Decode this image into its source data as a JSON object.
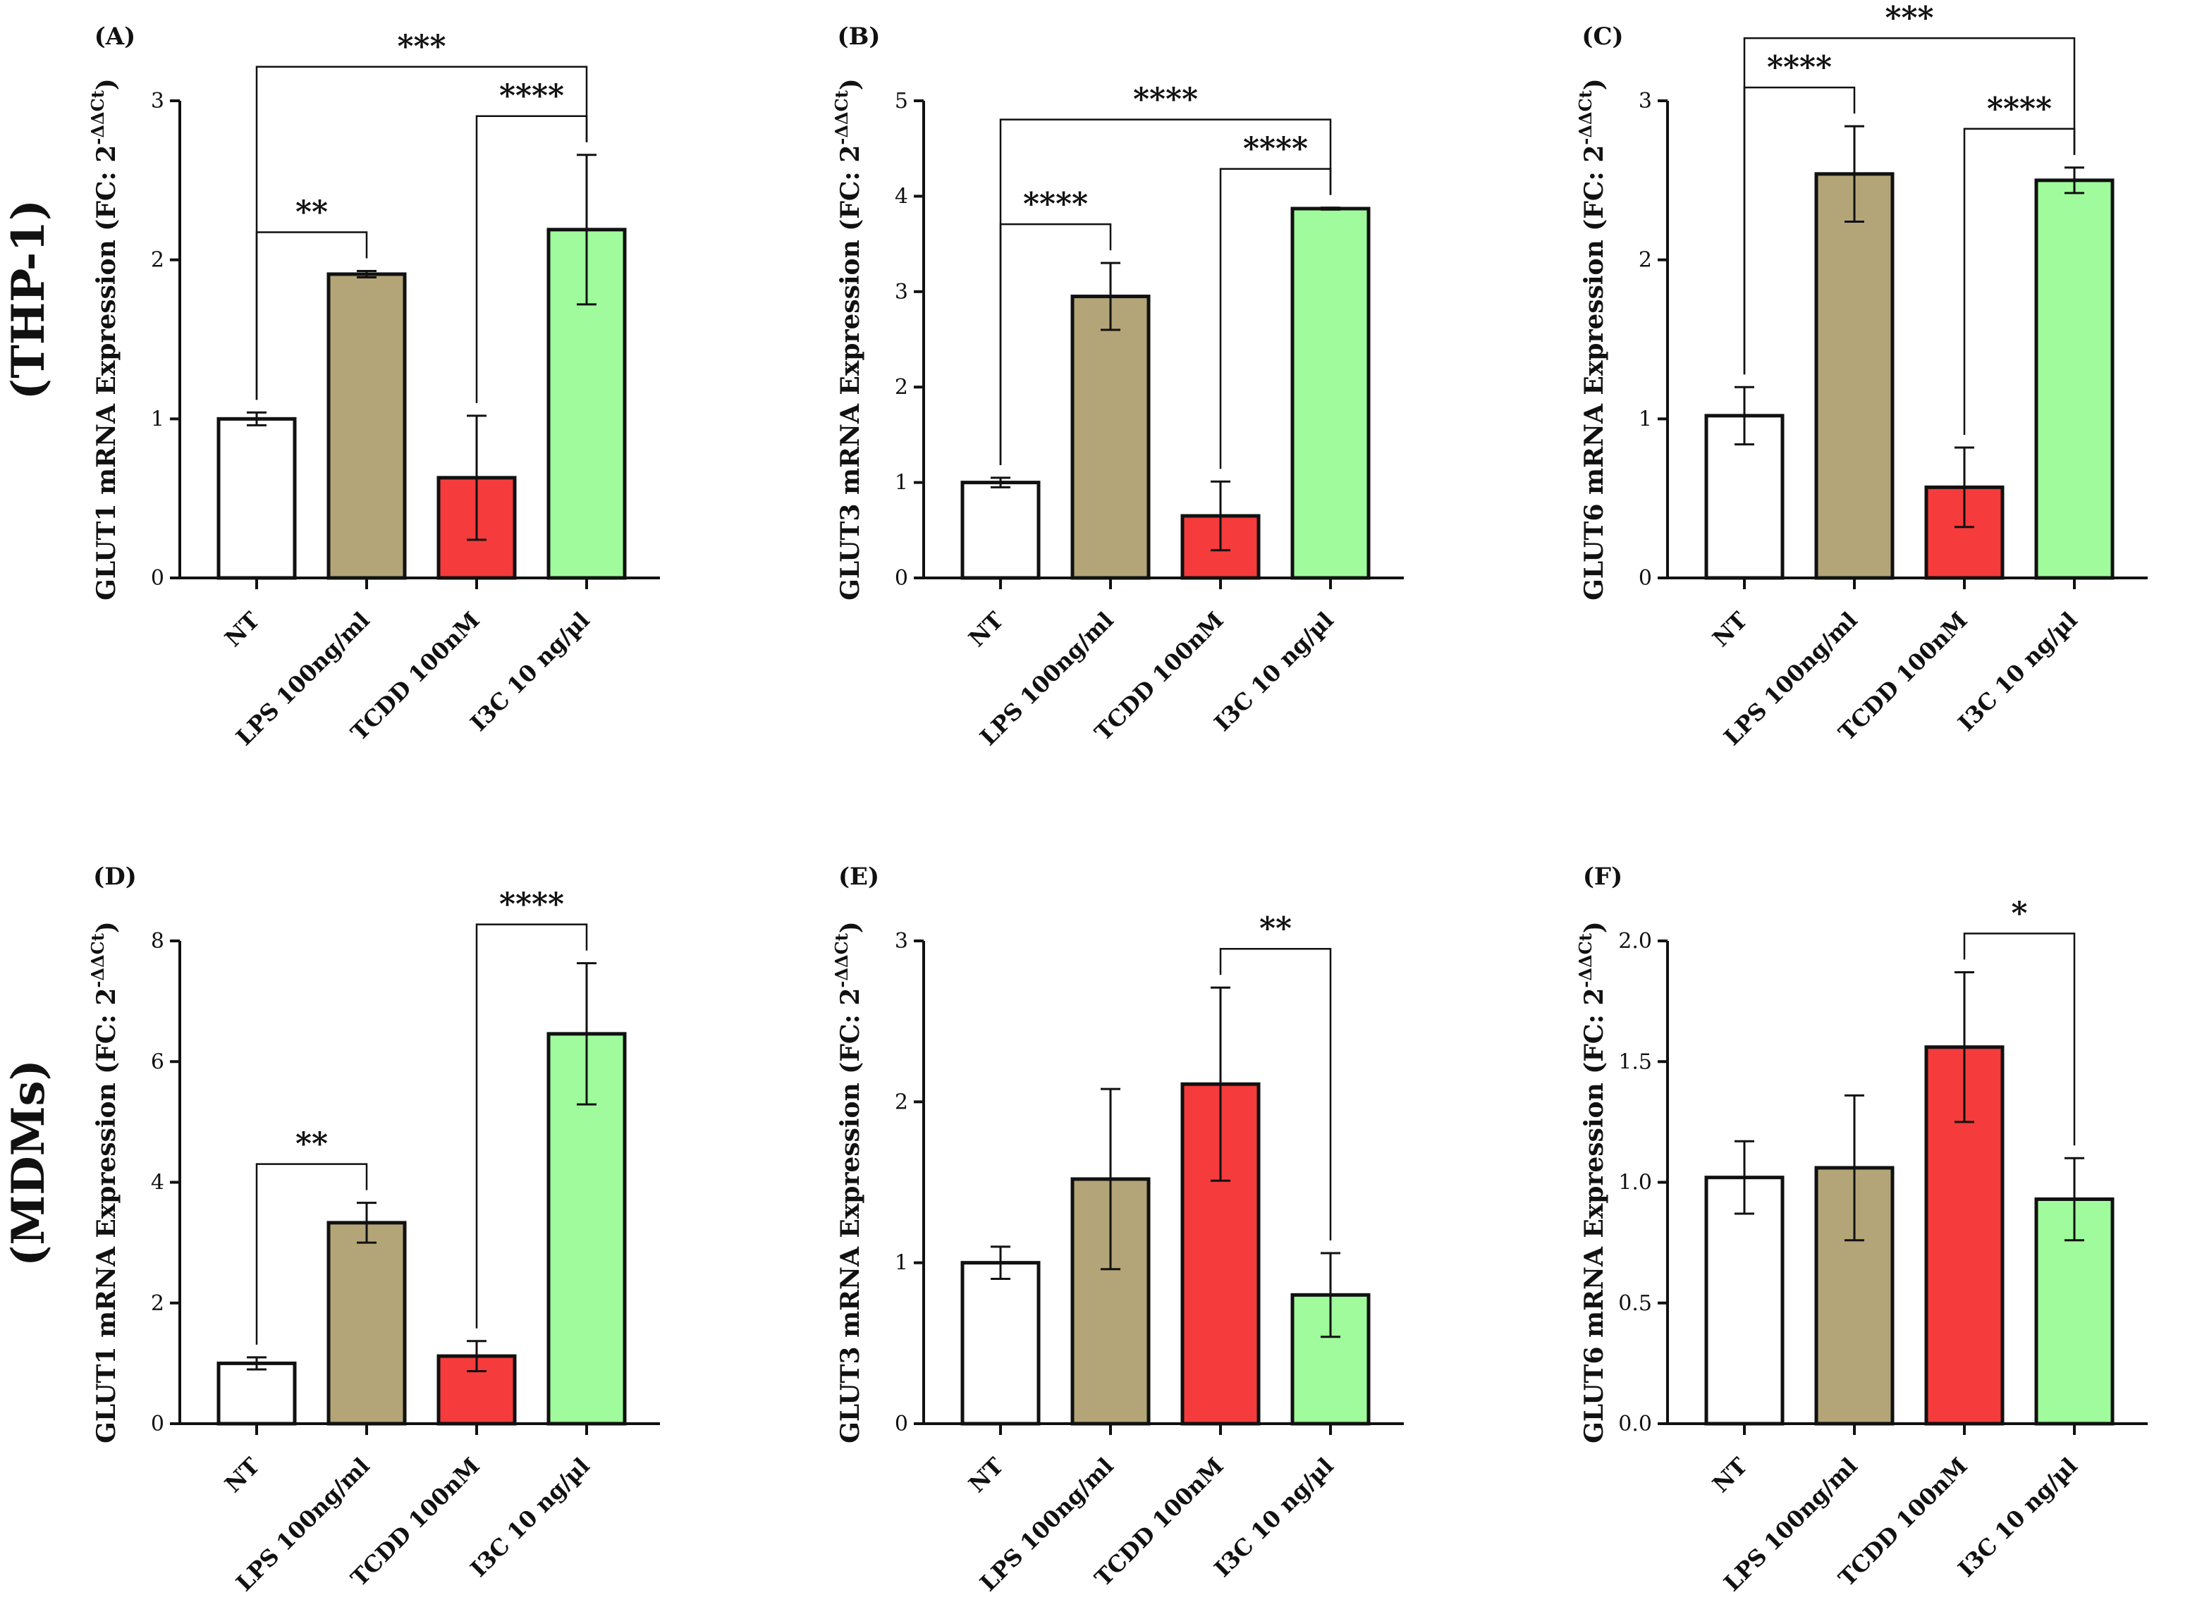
{
  "colors": {
    "NT": "#ffffff",
    "LPS": "#b3a577",
    "TCDD": "#f53b3b",
    "I3C": "#a0fb9c"
  },
  "row_labels": [
    "(THP-1)",
    "(MDMs)"
  ],
  "chart_data": [
    {
      "type": "bar",
      "panel": "(A)",
      "row": 0,
      "col": 0,
      "ylabel_main": "GLUT1 mRNA Expression (FC: 2",
      "ylabel_sup": "-ΔΔCt",
      "ylabel_end": ")",
      "categories": [
        "NT",
        "LPS 100ng/ml",
        "TCDD 100nM",
        "I3C 10 ng/µl"
      ],
      "values": [
        1.0,
        1.91,
        0.63,
        2.19
      ],
      "errors": [
        0.04,
        0.02,
        0.39,
        0.47
      ],
      "ylim": [
        0,
        3
      ],
      "yticks": [
        "0",
        "1",
        "2",
        "3"
      ],
      "significance": [
        {
          "from": 0,
          "to": 1,
          "label": "**",
          "level": 1
        },
        {
          "from": 2,
          "to": 3,
          "label": "****",
          "level": 1
        },
        {
          "from": 0,
          "to": 3,
          "label": "***",
          "level": 2
        }
      ]
    },
    {
      "type": "bar",
      "panel": "(B)",
      "row": 0,
      "col": 1,
      "ylabel_main": "GLUT3 mRNA Expression (FC: 2",
      "ylabel_sup": "-ΔΔCt",
      "ylabel_end": ")",
      "categories": [
        "NT",
        "LPS 100ng/ml",
        "TCDD 100nM",
        "I3C 10 ng/µl"
      ],
      "values": [
        1.0,
        2.95,
        0.65,
        3.87
      ],
      "errors": [
        0.05,
        0.35,
        0.36,
        0.01
      ],
      "ylim": [
        0,
        5
      ],
      "yticks": [
        "0",
        "1",
        "2",
        "3",
        "4",
        "5"
      ],
      "significance": [
        {
          "from": 0,
          "to": 1,
          "label": "****",
          "level": 1
        },
        {
          "from": 2,
          "to": 3,
          "label": "****",
          "level": 1
        },
        {
          "from": 0,
          "to": 3,
          "label": "****",
          "level": 2
        }
      ]
    },
    {
      "type": "bar",
      "panel": "(C)",
      "row": 0,
      "col": 2,
      "ylabel_main": "GLUT6 mRNA Expression (FC: 2",
      "ylabel_sup": "-ΔΔCt",
      "ylabel_end": ")",
      "categories": [
        "NT",
        "LPS 100ng/ml",
        "TCDD 100nM",
        "I3C 10 ng/µl"
      ],
      "values": [
        1.02,
        2.54,
        0.57,
        2.5
      ],
      "errors": [
        0.18,
        0.3,
        0.25,
        0.08
      ],
      "ylim": [
        0,
        3
      ],
      "yticks": [
        "0",
        "1",
        "2",
        "3"
      ],
      "significance": [
        {
          "from": 0,
          "to": 1,
          "label": "****",
          "level": 1
        },
        {
          "from": 2,
          "to": 3,
          "label": "****",
          "level": 1
        },
        {
          "from": 0,
          "to": 3,
          "label": "***",
          "level": 2
        }
      ]
    },
    {
      "type": "bar",
      "panel": "(D)",
      "row": 1,
      "col": 0,
      "ylabel_main": "GLUT1 mRNA Expression (FC: 2",
      "ylabel_sup": "-ΔΔCt",
      "ylabel_end": ")",
      "categories": [
        "NT",
        "LPS 100ng/ml",
        "TCDD 100nM",
        "I3C 10 ng/µl"
      ],
      "values": [
        1.0,
        3.33,
        1.12,
        6.46
      ],
      "errors": [
        0.1,
        0.33,
        0.25,
        1.17
      ],
      "ylim": [
        0,
        8
      ],
      "yticks": [
        "0",
        "2",
        "4",
        "6",
        "8"
      ],
      "significance": [
        {
          "from": 0,
          "to": 1,
          "label": "**",
          "level": 1
        },
        {
          "from": 2,
          "to": 3,
          "label": "****",
          "level": 1
        }
      ]
    },
    {
      "type": "bar",
      "panel": "(E)",
      "row": 1,
      "col": 1,
      "ylabel_main": "GLUT3 mRNA Expression (FC: 2",
      "ylabel_sup": "-ΔΔCt",
      "ylabel_end": ")",
      "categories": [
        "NT",
        "LPS 100ng/ml",
        "TCDD 100nM",
        "I3C 10 ng/µl"
      ],
      "values": [
        1.0,
        1.52,
        2.11,
        0.8
      ],
      "errors": [
        0.1,
        0.56,
        0.6,
        0.26
      ],
      "ylim": [
        0,
        3
      ],
      "yticks": [
        "0",
        "1",
        "2",
        "3"
      ],
      "significance": [
        {
          "from": 2,
          "to": 3,
          "label": "**",
          "level": 1
        }
      ]
    },
    {
      "type": "bar",
      "panel": "(F)",
      "row": 1,
      "col": 2,
      "ylabel_main": "GLUT6 mRNA Expression (FC: 2",
      "ylabel_sup": "-ΔΔCt",
      "ylabel_end": ")",
      "categories": [
        "NT",
        "LPS 100ng/ml",
        "TCDD 100nM",
        "I3C 10 ng/µl"
      ],
      "values": [
        1.02,
        1.06,
        1.56,
        0.93
      ],
      "errors": [
        0.15,
        0.3,
        0.31,
        0.17
      ],
      "ylim": [
        0,
        2.0
      ],
      "yticks": [
        "0.0",
        "0.5",
        "1.0",
        "1.5",
        "2.0"
      ],
      "significance": [
        {
          "from": 2,
          "to": 3,
          "label": "*",
          "level": 1
        }
      ]
    }
  ]
}
